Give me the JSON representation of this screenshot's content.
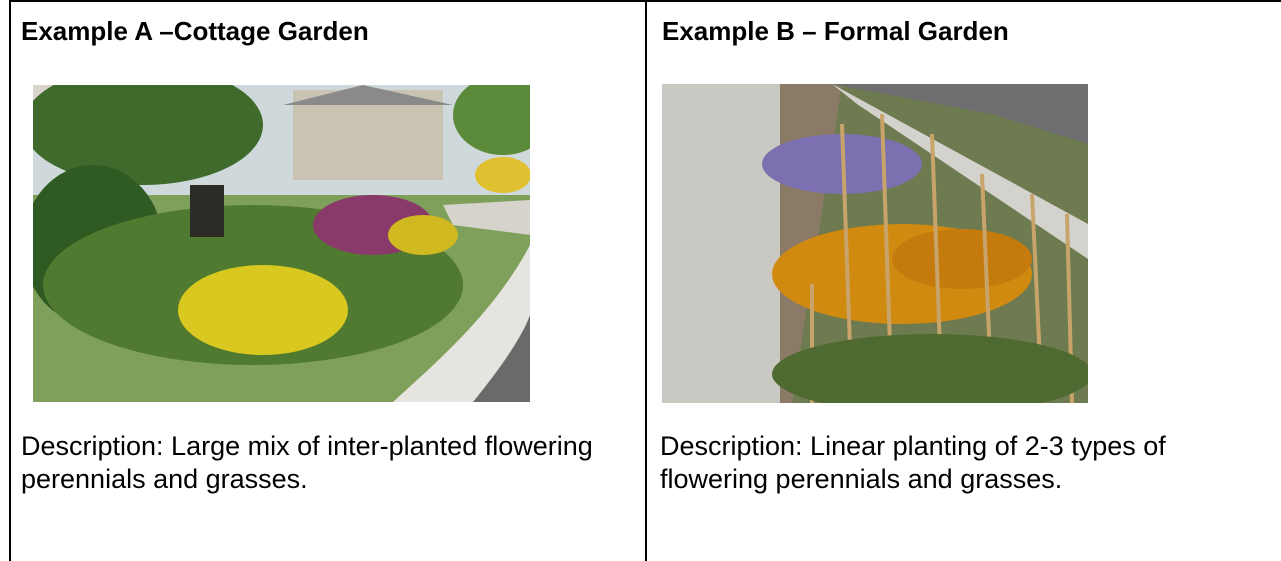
{
  "cells": [
    {
      "title": "Example A –Cottage Garden",
      "description": "Description: Large mix of inter-planted flowering perennials and grasses."
    },
    {
      "title": "Example B – Formal Garden",
      "description": "Description: Linear planting of 2-3 types of flowering perennials and grasses."
    }
  ]
}
